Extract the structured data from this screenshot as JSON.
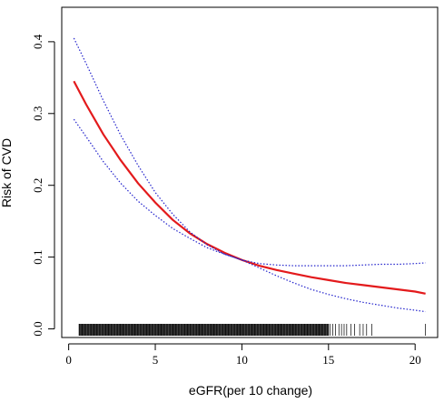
{
  "chart_data": {
    "type": "line",
    "title": "",
    "xlabel": "eGFR(per 10 change)",
    "ylabel": "Risk of CVD",
    "xlim": [
      -0.4,
      21.3
    ],
    "ylim": [
      -0.012,
      0.448
    ],
    "x_ticks": [
      0,
      5,
      10,
      15,
      20
    ],
    "y_ticks": [
      0.0,
      0.1,
      0.2,
      0.3,
      0.4
    ],
    "y_tick_labels": [
      "0.0",
      "0.1",
      "0.2",
      "0.3",
      "0.4"
    ],
    "grid": false,
    "colors": {
      "estimate": "#e31a1c",
      "ci": "#2222cc",
      "rug": "#000000"
    },
    "series": [
      {
        "style": "solid",
        "x": [
          0.3,
          1,
          2,
          3,
          4,
          5,
          6,
          7,
          8,
          9,
          10,
          11,
          12,
          13,
          14,
          15,
          16,
          17,
          18,
          19,
          20,
          20.6
        ],
        "y": [
          0.345,
          0.313,
          0.271,
          0.235,
          0.203,
          0.176,
          0.152,
          0.133,
          0.118,
          0.106,
          0.096,
          0.088,
          0.082,
          0.077,
          0.072,
          0.068,
          0.064,
          0.061,
          0.058,
          0.055,
          0.052,
          0.049
        ]
      },
      {
        "style": "dotted",
        "x": [
          0.3,
          1,
          2,
          3,
          4,
          5,
          6,
          7,
          8,
          9,
          10,
          11,
          12,
          13,
          14,
          15,
          16,
          17,
          18,
          19,
          20,
          20.6
        ],
        "y": [
          0.405,
          0.37,
          0.318,
          0.27,
          0.228,
          0.19,
          0.16,
          0.135,
          0.117,
          0.104,
          0.096,
          0.091,
          0.089,
          0.088,
          0.088,
          0.088,
          0.088,
          0.089,
          0.09,
          0.09,
          0.091,
          0.092
        ]
      },
      {
        "style": "dotted",
        "x": [
          0.3,
          1,
          2,
          3,
          4,
          5,
          6,
          7,
          8,
          9,
          10,
          11,
          12,
          13,
          14,
          15,
          16,
          17,
          18,
          19,
          20,
          20.6
        ],
        "y": [
          0.292,
          0.268,
          0.233,
          0.203,
          0.178,
          0.158,
          0.14,
          0.126,
          0.113,
          0.104,
          0.096,
          0.085,
          0.074,
          0.064,
          0.055,
          0.048,
          0.042,
          0.037,
          0.033,
          0.029,
          0.026,
          0.024
        ]
      }
    ],
    "rug": {
      "dense_range": [
        0.6,
        15.0
      ],
      "dense_step": 0.04,
      "sparse": [
        15.1,
        15.25,
        15.4,
        15.6,
        15.75,
        15.9,
        16.05,
        16.3,
        16.5,
        16.8,
        17.0,
        17.2,
        17.5,
        20.6
      ]
    }
  }
}
